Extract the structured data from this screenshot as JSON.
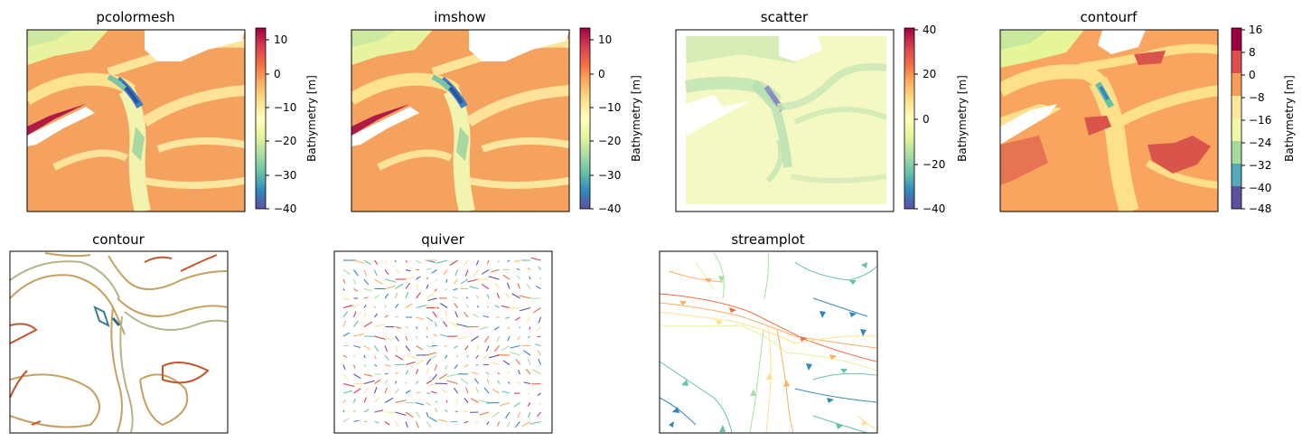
{
  "figure": {
    "panels": [
      {
        "title": "pcolormesh"
      },
      {
        "title": "imshow"
      },
      {
        "title": "scatter"
      },
      {
        "title": "contourf"
      },
      {
        "title": "contour"
      },
      {
        "title": "quiver"
      },
      {
        "title": "streamplot"
      }
    ],
    "colorbars": [
      {
        "label": "Bathymetry [m]",
        "ticks": [
          "10",
          "0",
          "−10",
          "−20",
          "−30",
          "−40"
        ]
      },
      {
        "label": "Bathymetry [m]",
        "ticks": [
          "10",
          "0",
          "−10",
          "−20",
          "−30",
          "−40"
        ]
      },
      {
        "label": "Bathymetry [m]",
        "ticks": [
          "40",
          "20",
          "0",
          "−20",
          "−40"
        ]
      },
      {
        "label": "Bathymetry [m]",
        "ticks": [
          "16",
          "8",
          "0",
          "−8",
          "−16",
          "−24",
          "−32",
          "−40",
          "−48"
        ]
      }
    ],
    "colormap": "Spectral_r",
    "colormap_stops": [
      "#5e4fa2",
      "#3288bd",
      "#66c2a5",
      "#abdda4",
      "#e6f598",
      "#ffffbf",
      "#fee08b",
      "#fdae61",
      "#f46d43",
      "#d53e4f",
      "#9e0142"
    ]
  },
  "chart_data": [
    {
      "type": "heatmap",
      "title": "pcolormesh",
      "colorbar_label": "Bathymetry [m]",
      "clim": [
        -41,
        14
      ],
      "colorbar_ticks": [
        10,
        0,
        -10,
        -20,
        -30,
        -40
      ]
    },
    {
      "type": "heatmap",
      "title": "imshow",
      "colorbar_label": "Bathymetry [m]",
      "clim": [
        -41,
        14
      ],
      "colorbar_ticks": [
        10,
        0,
        -10,
        -20,
        -30,
        -40
      ]
    },
    {
      "type": "scatter",
      "title": "scatter",
      "colorbar_label": "Bathymetry [m]",
      "clim": [
        -41,
        41
      ],
      "colorbar_ticks": [
        40,
        20,
        0,
        -20,
        -40
      ]
    },
    {
      "type": "heatmap",
      "title": "contourf",
      "colorbar_label": "Bathymetry [m]",
      "levels": [
        -48,
        -40,
        -32,
        -24,
        -16,
        -8,
        0,
        8,
        16
      ]
    },
    {
      "type": "line",
      "title": "contour"
    },
    {
      "type": "scatter",
      "title": "quiver"
    },
    {
      "type": "line",
      "title": "streamplot"
    }
  ]
}
